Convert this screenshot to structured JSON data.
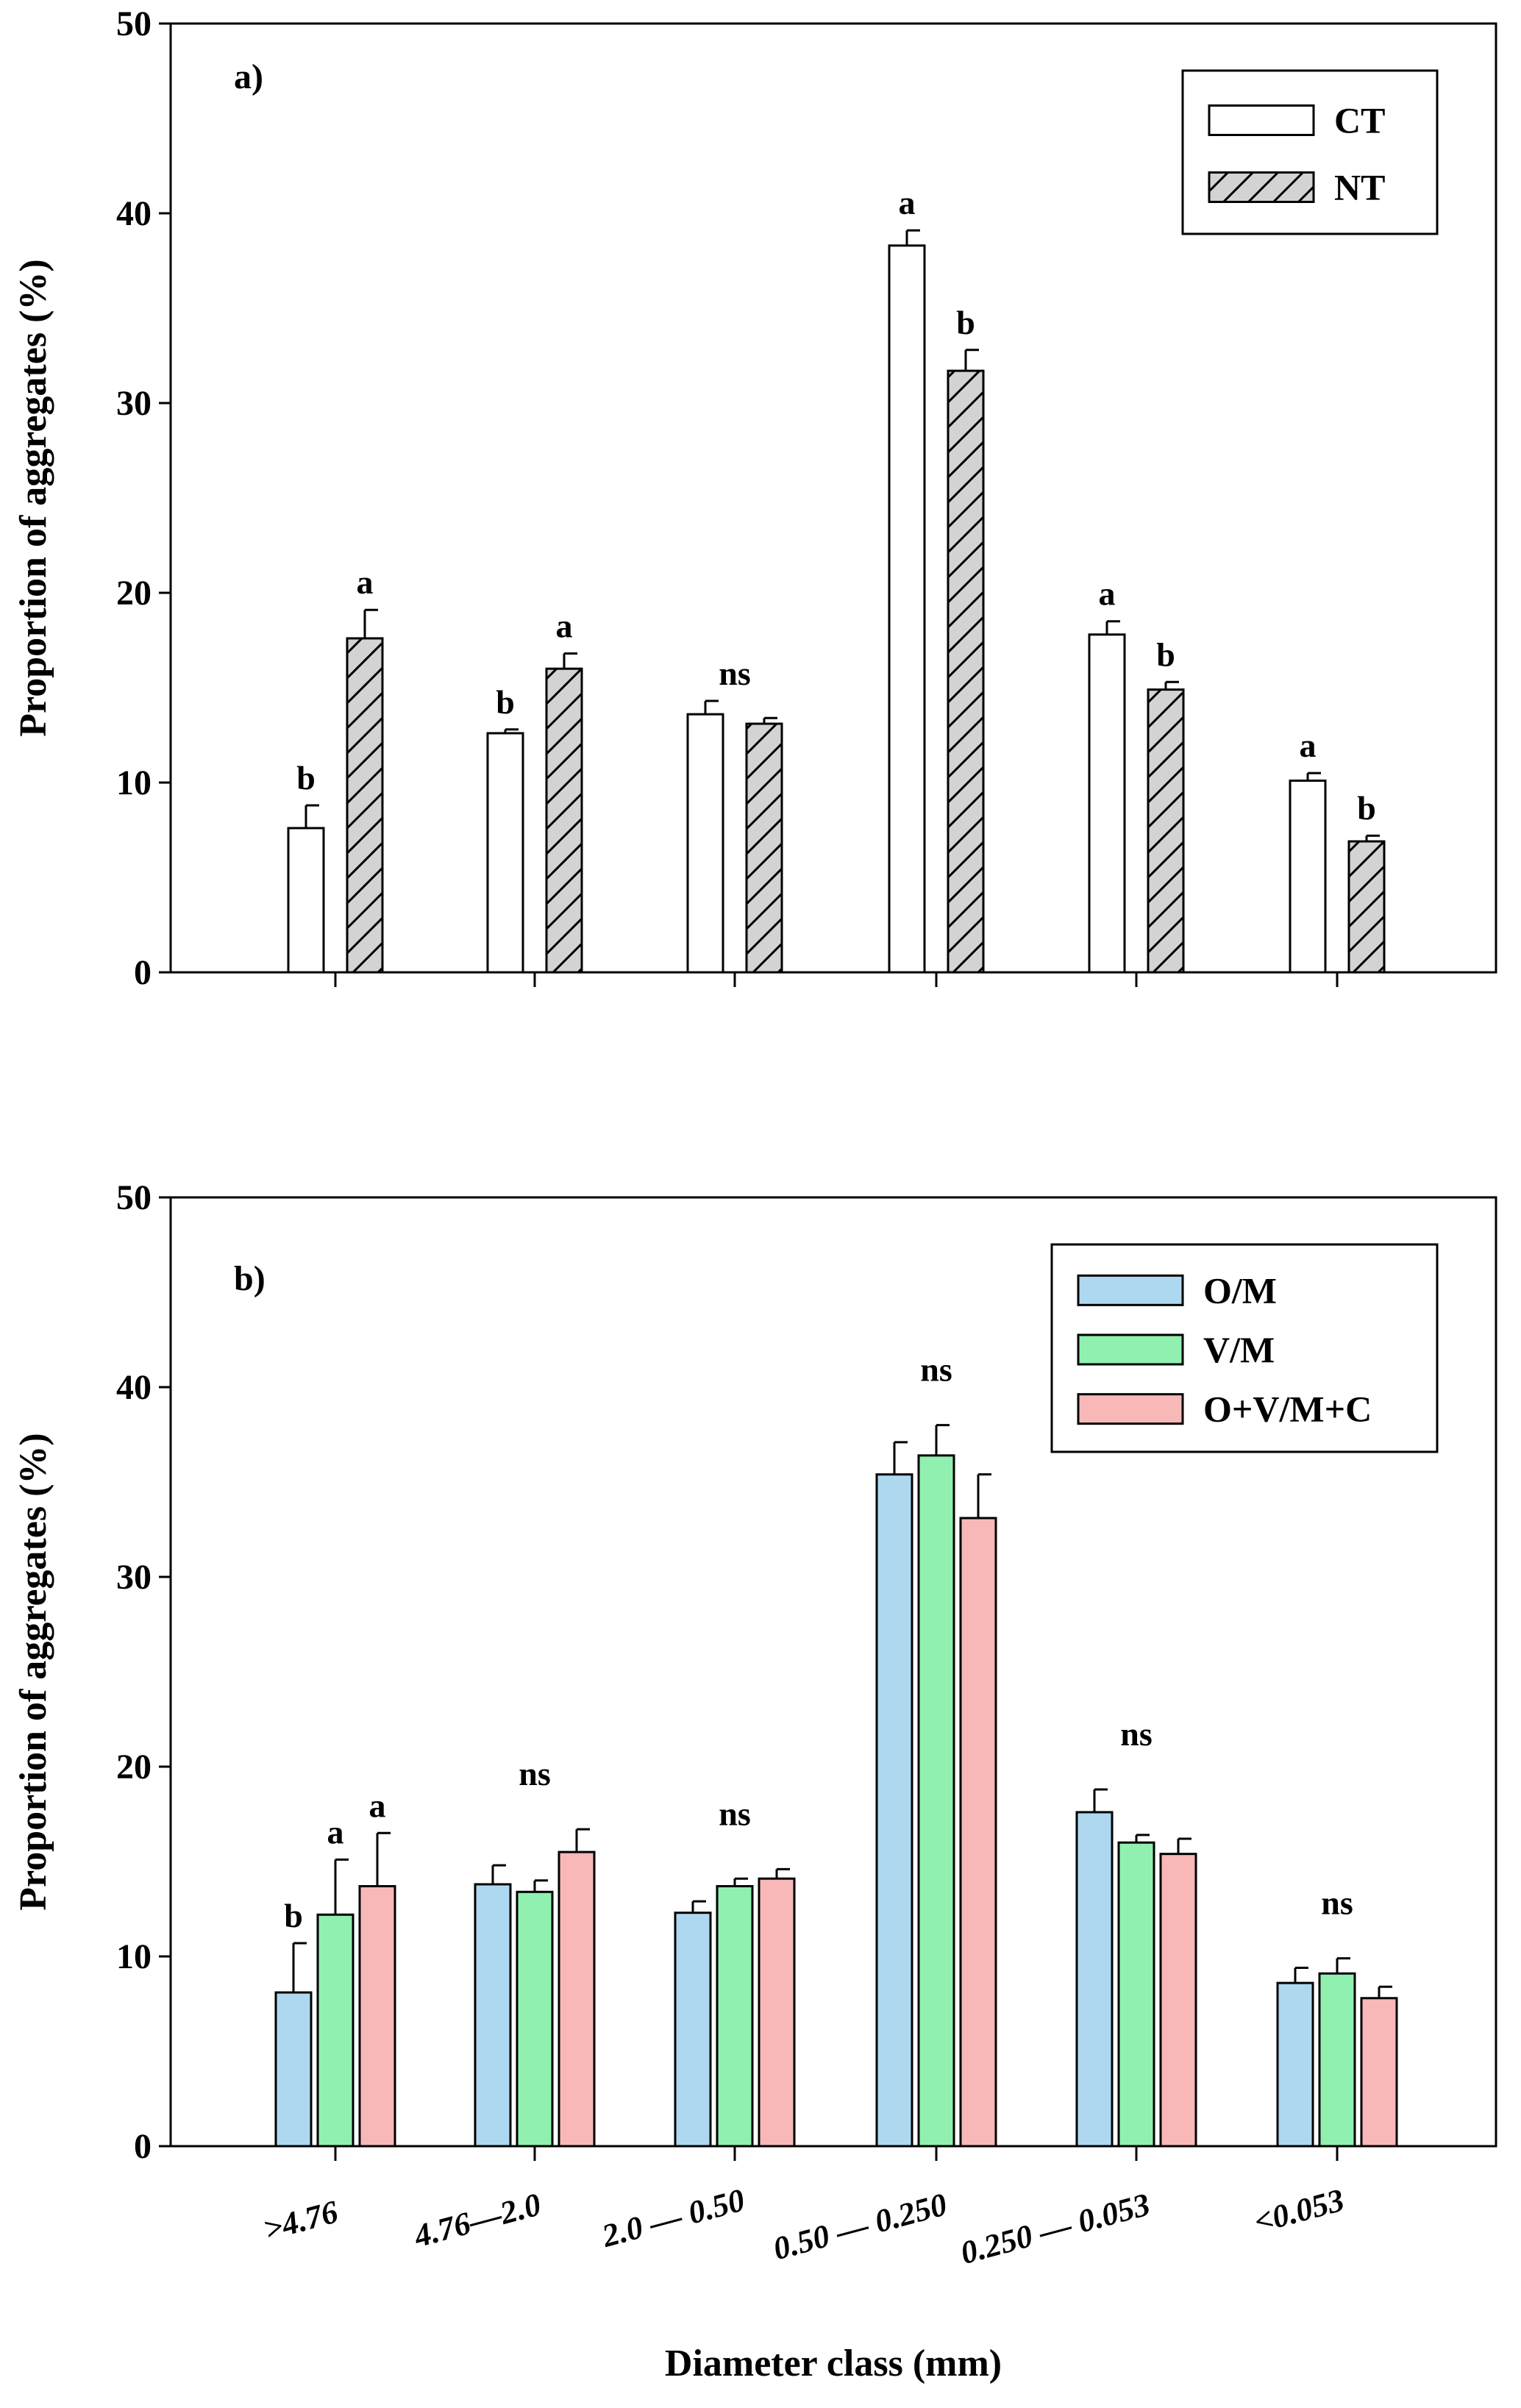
{
  "chart_data": [
    {
      "type": "bar",
      "panel_label": "a)",
      "ylabel": "Proportion of aggregates (%)",
      "xlabel": "",
      "ylim": [
        0,
        50
      ],
      "yticks": [
        0,
        10,
        20,
        30,
        40,
        50
      ],
      "ytick_labels": [
        "0",
        "10",
        "20",
        "30",
        "40",
        "50"
      ],
      "categories": [
        ">4.76",
        "4.76—2.0",
        "2.0 — 0.50",
        "0.50 — 0.250",
        "0.250 — 0.053",
        "<0.053"
      ],
      "legend_position": "top-right",
      "series": [
        {
          "name": "CT",
          "fill": "#ffffff",
          "pattern": "none",
          "values": [
            7.6,
            12.6,
            13.6,
            38.3,
            17.8,
            10.1
          ],
          "errors": [
            1.2,
            0.2,
            0.7,
            0.8,
            0.7,
            0.4
          ],
          "labels": [
            "b",
            "b",
            "ns",
            "a",
            "a",
            "a"
          ]
        },
        {
          "name": "NT",
          "fill": "#d3d3d3",
          "pattern": "diagonal-hatch",
          "values": [
            17.6,
            16.0,
            13.1,
            31.7,
            14.9,
            6.9
          ],
          "errors": [
            1.5,
            0.8,
            0.3,
            1.1,
            0.4,
            0.3
          ],
          "labels": [
            "a",
            "a",
            "",
            "b",
            "b",
            "b"
          ]
        }
      ]
    },
    {
      "type": "bar",
      "panel_label": "b)",
      "ylabel": "Proportion of aggregates (%)",
      "xlabel": "Diameter class (mm)",
      "ylim": [
        0,
        50
      ],
      "yticks": [
        0,
        10,
        20,
        30,
        40,
        50
      ],
      "ytick_labels": [
        "0",
        "10",
        "20",
        "30",
        "40",
        "50"
      ],
      "categories": [
        ">4.76",
        "4.76—2.0",
        "2.0 — 0.50",
        "0.50 — 0.250",
        "0.250 — 0.053",
        "<0.053"
      ],
      "legend_position": "top-right",
      "series": [
        {
          "name": "O/M",
          "fill": "#add8f0",
          "pattern": "none",
          "values": [
            8.1,
            13.8,
            12.3,
            35.4,
            17.6,
            8.6
          ],
          "errors": [
            2.6,
            1.0,
            0.6,
            1.7,
            1.2,
            0.8
          ],
          "labels": [
            "b",
            "",
            "",
            "",
            "",
            ""
          ]
        },
        {
          "name": "V/M",
          "fill": "#90f0b0",
          "pattern": "none",
          "values": [
            12.2,
            13.4,
            13.7,
            36.4,
            16.0,
            9.1
          ],
          "errors": [
            2.9,
            0.6,
            0.4,
            1.6,
            0.4,
            0.8
          ],
          "labels": [
            "a",
            "",
            "",
            "",
            "",
            ""
          ]
        },
        {
          "name": "O+V/M+C",
          "fill": "#f8b8b8",
          "pattern": "none",
          "values": [
            13.7,
            15.5,
            14.1,
            33.1,
            15.4,
            7.8
          ],
          "errors": [
            2.8,
            1.2,
            0.5,
            2.3,
            0.8,
            0.6
          ],
          "labels": [
            "a",
            "",
            "",
            "",
            "",
            ""
          ]
        }
      ],
      "group_labels": [
        "",
        "ns",
        "ns",
        "ns",
        "ns",
        "ns"
      ]
    }
  ]
}
